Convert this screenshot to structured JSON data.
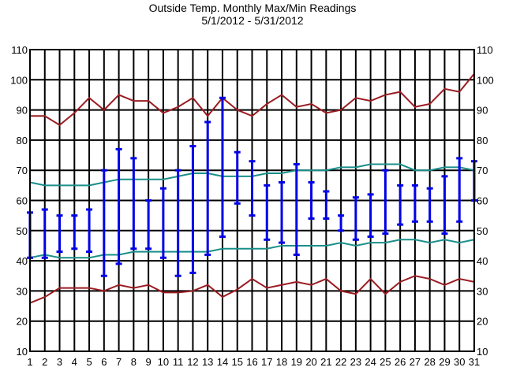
{
  "chart_data": {
    "type": "line",
    "title": "Outside Temp. Monthly Max/Min Readings",
    "subtitle": "5/1/2012 - 5/31/2012",
    "xlabel": "",
    "ylabel": "",
    "xlim": [
      1,
      31
    ],
    "ylim": [
      10,
      110
    ],
    "grid": true,
    "x": [
      1,
      2,
      3,
      4,
      5,
      6,
      7,
      8,
      9,
      10,
      11,
      12,
      13,
      14,
      15,
      16,
      17,
      18,
      19,
      20,
      21,
      22,
      23,
      24,
      25,
      26,
      27,
      28,
      29,
      30,
      31
    ],
    "x_tick_labels": [
      "1",
      "2",
      "3",
      "4",
      "5",
      "6",
      "7",
      "8",
      "9",
      "10",
      "11",
      "12",
      "13",
      "14",
      "15",
      "16",
      "17",
      "18",
      "19",
      "20",
      "21",
      "22",
      "23",
      "24",
      "25",
      "26",
      "27",
      "28",
      "29",
      "30",
      "31"
    ],
    "y_tick_labels": [
      "10",
      "20",
      "30",
      "40",
      "50",
      "60",
      "70",
      "80",
      "90",
      "100",
      "110"
    ],
    "colors": {
      "record_high": "#9b1c22",
      "record_low": "#9b1c22",
      "normal": "#1a8f8a",
      "daily_range": "#0000e6",
      "grid": "#000000"
    },
    "series": [
      {
        "key": "record_high",
        "values": [
          88,
          88,
          85,
          89,
          94,
          90,
          95,
          93,
          93,
          89,
          91,
          94,
          88,
          94,
          90,
          88,
          92,
          95,
          91,
          92,
          89,
          90,
          94,
          93,
          95,
          96,
          91,
          92,
          97,
          96,
          102
        ]
      },
      {
        "key": "record_low",
        "values": [
          26,
          28,
          31,
          31,
          31,
          30,
          32,
          31,
          32,
          29.5,
          29.5,
          30,
          32,
          28,
          30.5,
          34,
          31,
          32,
          33,
          32,
          34,
          30,
          29,
          34,
          29,
          33,
          35,
          34,
          32,
          34,
          33
        ]
      },
      {
        "key": "normal_high",
        "values": [
          66,
          65,
          65,
          65,
          65,
          66,
          67,
          67,
          67,
          67,
          68,
          69,
          69,
          68,
          68,
          68,
          69,
          69,
          70,
          70,
          70,
          71,
          71,
          72,
          72,
          72,
          70,
          70,
          71,
          71,
          70
        ]
      },
      {
        "key": "normal_low",
        "values": [
          41,
          42,
          41,
          41,
          41,
          42,
          42,
          43,
          43,
          43,
          43,
          43,
          43,
          44,
          44,
          44,
          44,
          45,
          45,
          45,
          45,
          46,
          45,
          46,
          46,
          47,
          47,
          46,
          47,
          46,
          47
        ]
      }
    ],
    "daily_range": {
      "high": [
        56,
        57,
        55,
        55,
        57,
        70,
        77,
        74,
        60,
        64,
        70,
        78,
        86,
        94,
        76,
        73,
        65,
        66,
        72,
        66,
        63,
        55,
        61,
        62,
        70,
        65,
        65,
        64,
        68,
        74,
        73
      ],
      "low": [
        41,
        41,
        43,
        44,
        43,
        35,
        39,
        44,
        44,
        41,
        35,
        36,
        42,
        48,
        59,
        55,
        47,
        46,
        42,
        54,
        54,
        50,
        47,
        48,
        49,
        52,
        53,
        53,
        49,
        53,
        60
      ]
    }
  }
}
